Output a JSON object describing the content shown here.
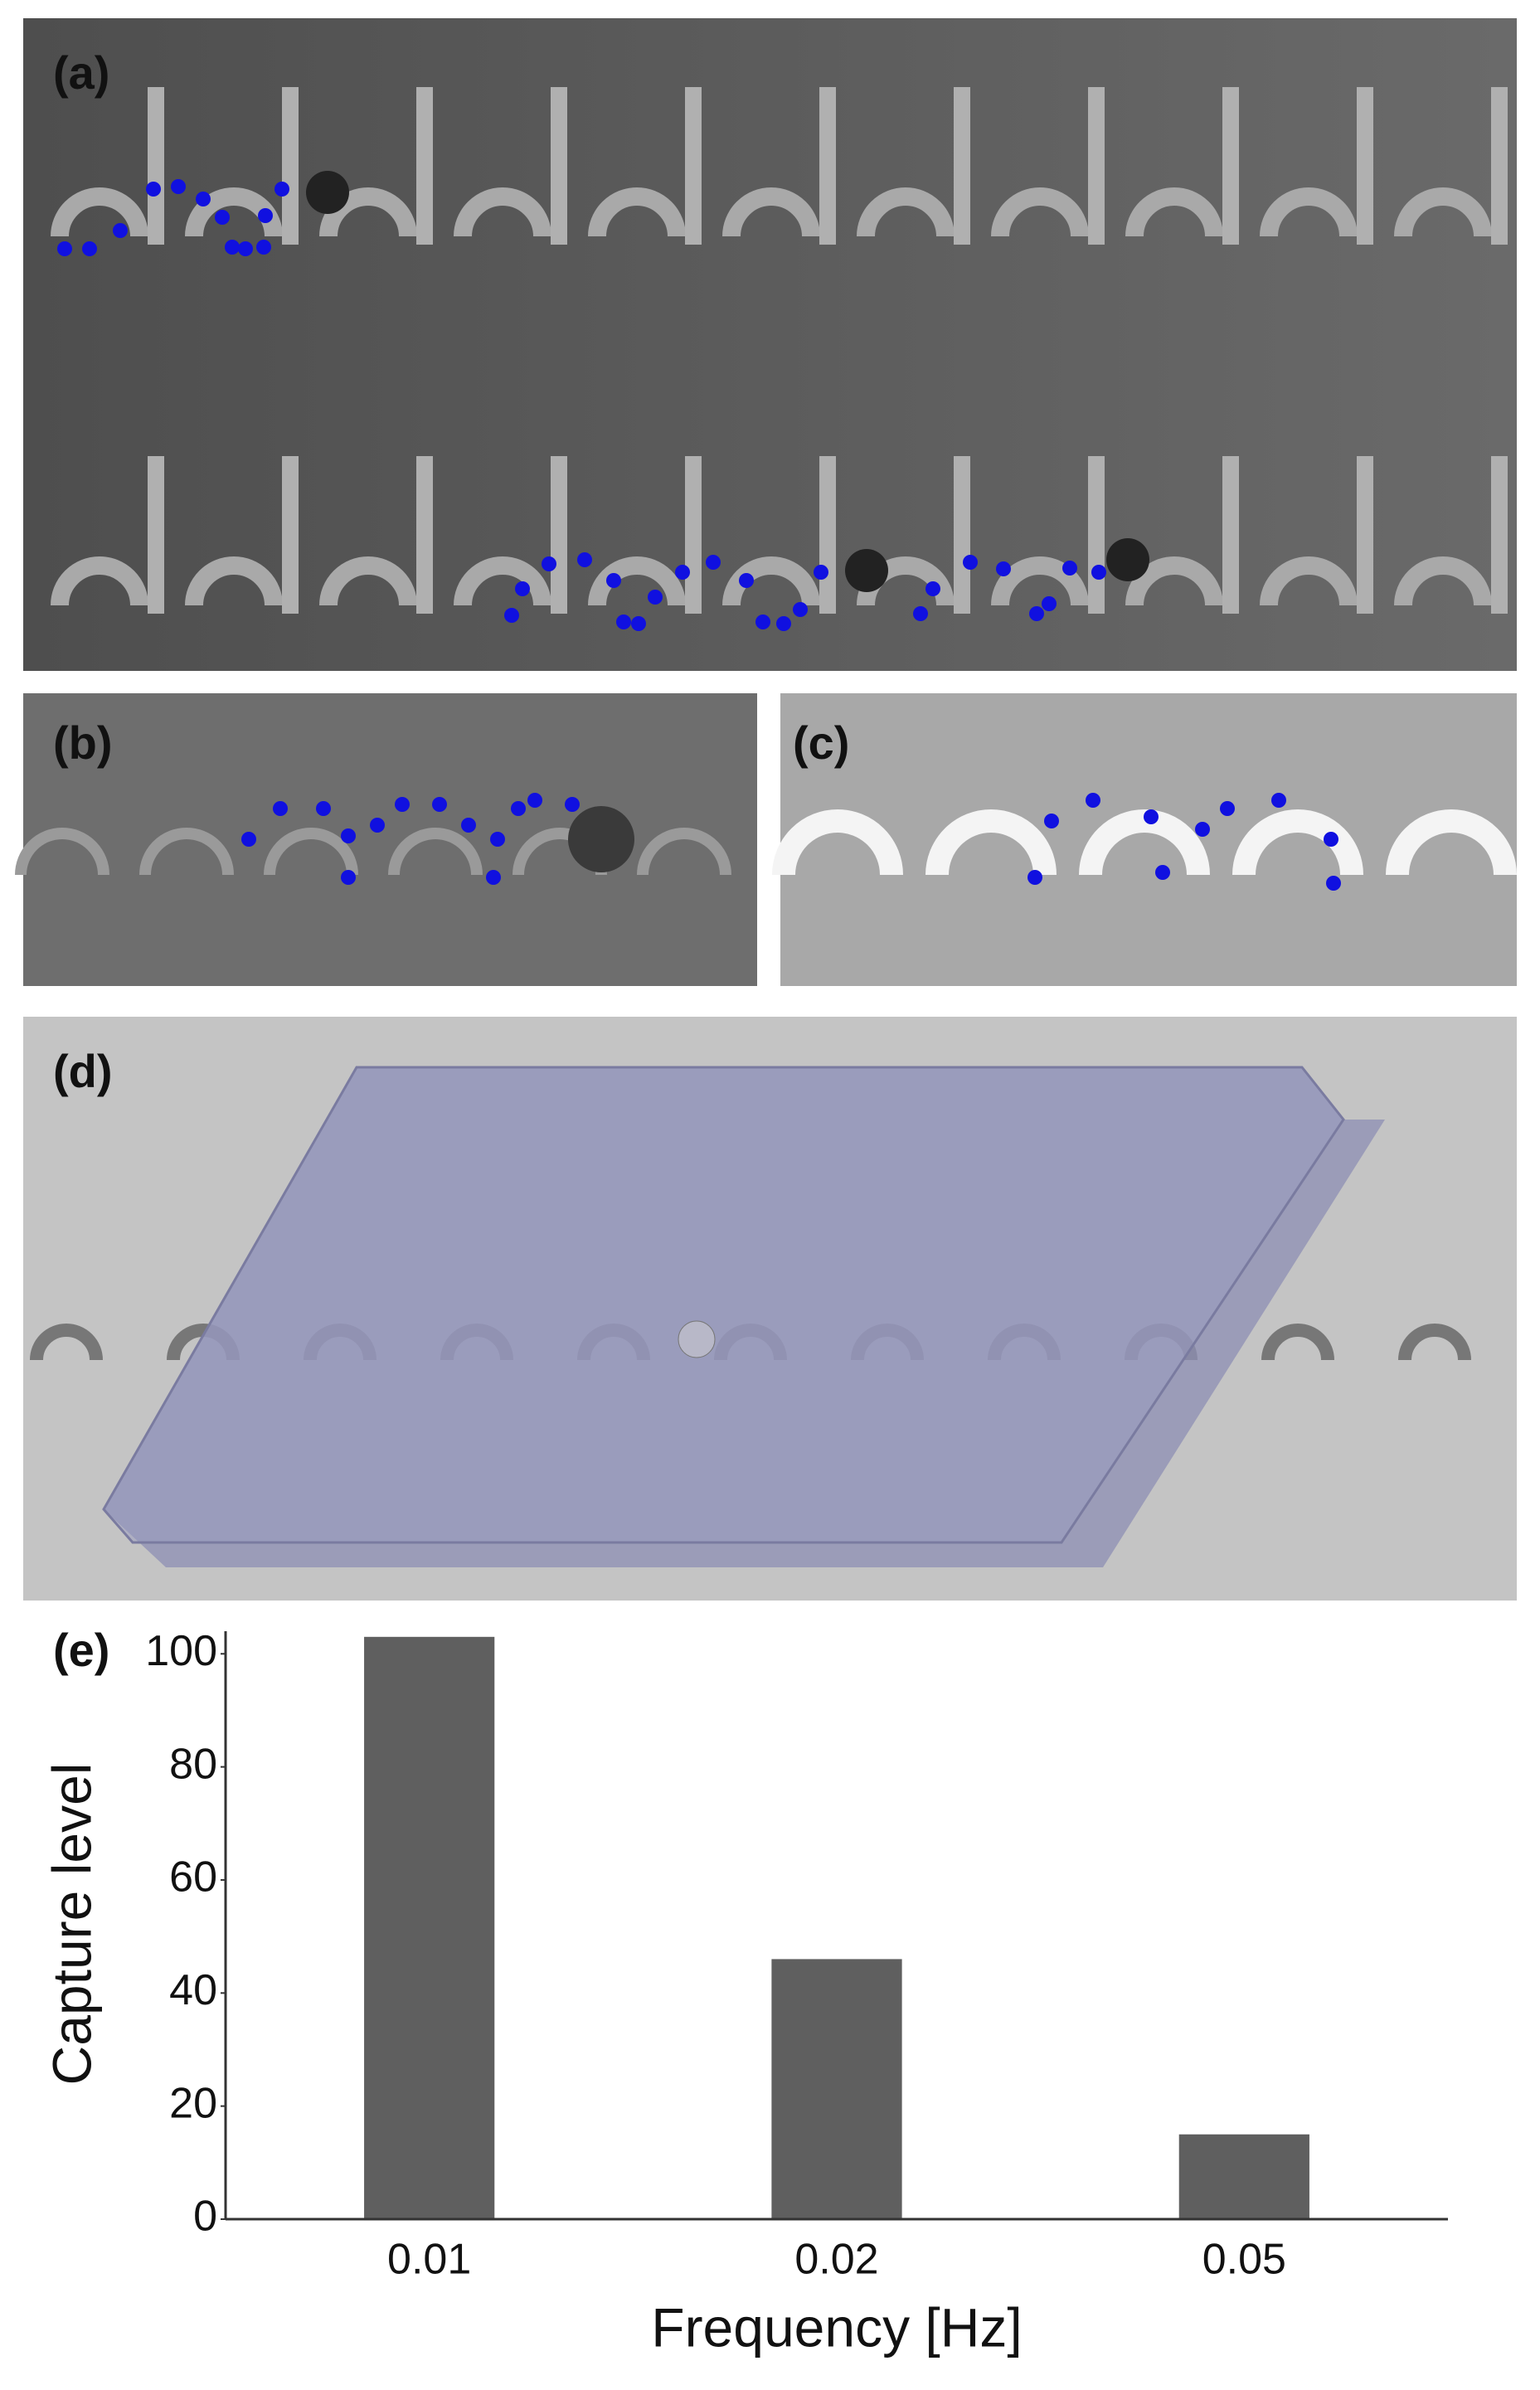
{
  "panel_labels": [
    "(a)",
    "(b)",
    "(c)",
    "(d)"
  ],
  "chart_data": {
    "type": "bar",
    "label": "(e)",
    "x_label": "Frequency [Hz]",
    "y_label": "Capture level",
    "categories": [
      "0.01",
      "0.02",
      "0.05"
    ],
    "values": [
      103,
      46,
      15
    ],
    "color": "#5f5f5f",
    "ylim": [
      0,
      104
    ],
    "yticks": [
      0,
      20,
      40,
      60,
      80,
      100
    ],
    "grid": false
  }
}
